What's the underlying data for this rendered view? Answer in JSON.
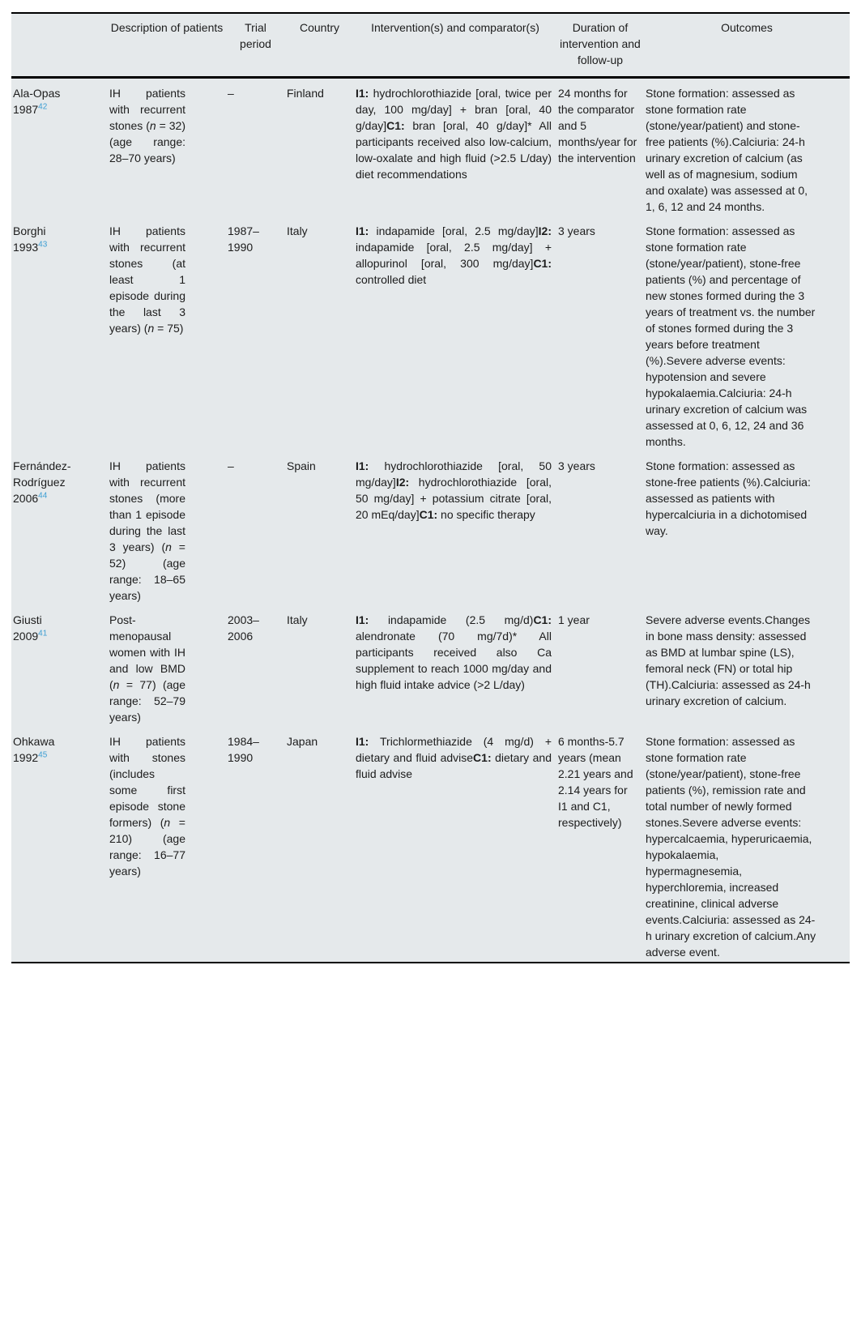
{
  "page": {
    "colors": {
      "page-bg": "#ffffff",
      "table-bg": "#e5e9eb",
      "text": "#1c1c1c",
      "rule": "#000000",
      "ref-blue": "#3d9ed3"
    }
  },
  "header": {
    "study": "",
    "description": "Description of patients",
    "trial_period": "Trial period",
    "country": "Country",
    "intervention": "Intervention(s) and comparator(s)",
    "duration": "Duration of intervention and follow-up",
    "outcomes": "Outcomes"
  },
  "rows": [
    {
      "study": "Ala-Opas 1987",
      "ref": "42",
      "description_segments": [
        {
          "t": "IH patients with recurrent stones ("
        },
        {
          "t": "n",
          "i": true
        },
        {
          "t": " = 32) (age range: 28–70 years)"
        }
      ],
      "trial_period": "–",
      "country": "Finland",
      "intervention_segments": [
        {
          "t": "I1:",
          "b": true
        },
        {
          "t": " hydrochlorothiazide [oral, twice per day, 100 mg/day] + bran [oral, 40 g/day]"
        },
        {
          "t": "C1:",
          "b": true
        },
        {
          "t": " bran [oral, 40 g/day]* All participants received also low-calcium, low-oxalate and high fluid (>2.5 L/day) diet recommendations"
        }
      ],
      "duration": "24 months for the comparator and 5 months/year for the intervention",
      "outcomes": "Stone formation: assessed as stone formation rate (stone/year/patient) and stone-free patients (%).Calciuria: 24-h urinary excretion of calcium (as well as of magnesium, sodium and oxalate) was assessed at 0, 1, 6, 12 and 24 months."
    },
    {
      "study": "Borghi 1993",
      "ref": "43",
      "description_segments": [
        {
          "t": "IH patients with recurrent stones (at least 1 episode during the last 3 years) ("
        },
        {
          "t": "n",
          "i": true
        },
        {
          "t": " = 75)"
        }
      ],
      "trial_period": "1987–1990",
      "country": "Italy",
      "intervention_segments": [
        {
          "t": "I1:",
          "b": true
        },
        {
          "t": " indapamide [oral, 2.5 mg/day]"
        },
        {
          "t": "I2:",
          "b": true
        },
        {
          "t": " indapamide [oral, 2.5 mg/day] + allopurinol [oral, 300 mg/day]"
        },
        {
          "t": "C1:",
          "b": true
        },
        {
          "t": " controlled diet"
        }
      ],
      "duration": "3 years",
      "outcomes": "Stone formation: assessed as stone formation rate (stone/year/patient), stone-free patients (%) and percentage of new stones formed during the 3 years of treatment vs. the number of stones formed during the 3 years before treatment (%).Severe adverse events: hypotension and severe hypokalaemia.Calciuria: 24-h urinary excretion of calcium was assessed at 0, 6, 12, 24 and 36 months."
    },
    {
      "study": "Fernández-Rodríguez 2006",
      "ref": "44",
      "description_segments": [
        {
          "t": "IH patients with recurrent stones (more than 1 episode during the last 3 years) ("
        },
        {
          "t": "n",
          "i": true
        },
        {
          "t": " = 52) (age range: 18–65 years)"
        }
      ],
      "trial_period": "–",
      "country": "Spain",
      "intervention_segments": [
        {
          "t": "I1:",
          "b": true
        },
        {
          "t": " hydrochlorothiazide [oral, 50 mg/day]"
        },
        {
          "t": "I2:",
          "b": true
        },
        {
          "t": " hydrochlorothiazide [oral, 50 mg/day] + potassium citrate [oral, 20 mEq/day]"
        },
        {
          "t": "C1:",
          "b": true
        },
        {
          "t": " no specific therapy"
        }
      ],
      "duration": "3 years",
      "outcomes": "Stone formation: assessed as stone-free patients (%).Calciuria: assessed as patients with hypercalciuria in a dichotomised way."
    },
    {
      "study": "Giusti 2009",
      "ref": "41",
      "description_segments": [
        {
          "t": "Post-menopausal women with IH and low BMD ("
        },
        {
          "t": "n",
          "i": true
        },
        {
          "t": " = 77) (age range: 52–79 years)"
        }
      ],
      "trial_period": "2003–2006",
      "country": "Italy",
      "intervention_segments": [
        {
          "t": "I1:",
          "b": true
        },
        {
          "t": " indapamide (2.5 mg/d)"
        },
        {
          "t": "C1:",
          "b": true
        },
        {
          "t": " alendronate (70 mg/7d)* All participants received also Ca supplement to reach 1000 mg/day and high fluid intake advice (>2 L/day)"
        }
      ],
      "duration": "1 year",
      "outcomes": "Severe adverse events.Changes in bone mass density: assessed as BMD at lumbar spine (LS), femoral neck (FN) or total hip (TH).Calciuria: assessed as 24-h urinary excretion of calcium."
    },
    {
      "study": "Ohkawa 1992",
      "ref": "45",
      "description_segments": [
        {
          "t": "IH patients with stones (includes some first episode stone formers) ("
        },
        {
          "t": "n",
          "i": true
        },
        {
          "t": " = 210) (age range: 16–77 years)"
        }
      ],
      "trial_period": "1984–1990",
      "country": "Japan",
      "intervention_segments": [
        {
          "t": "I1:",
          "b": true
        },
        {
          "t": " Trichlormethiazide (4 mg/d) + dietary and fluid advise"
        },
        {
          "t": "C1:",
          "b": true
        },
        {
          "t": " dietary and fluid advise"
        }
      ],
      "duration": "6 months-5.7 years (mean 2.21 years and 2.14 years for I1 and C1, respectively)",
      "outcomes": "Stone formation: assessed as stone formation rate (stone/year/patient), stone-free patients (%), remission rate and total number of newly formed stones.Severe adverse events: hypercalcaemia, hyperuricaemia, hypokalaemia, hypermagnesemia, hyperchloremia, increased creatinine, clinical adverse events.Calciuria: assessed as 24-h urinary excretion of calcium.Any adverse event."
    }
  ]
}
